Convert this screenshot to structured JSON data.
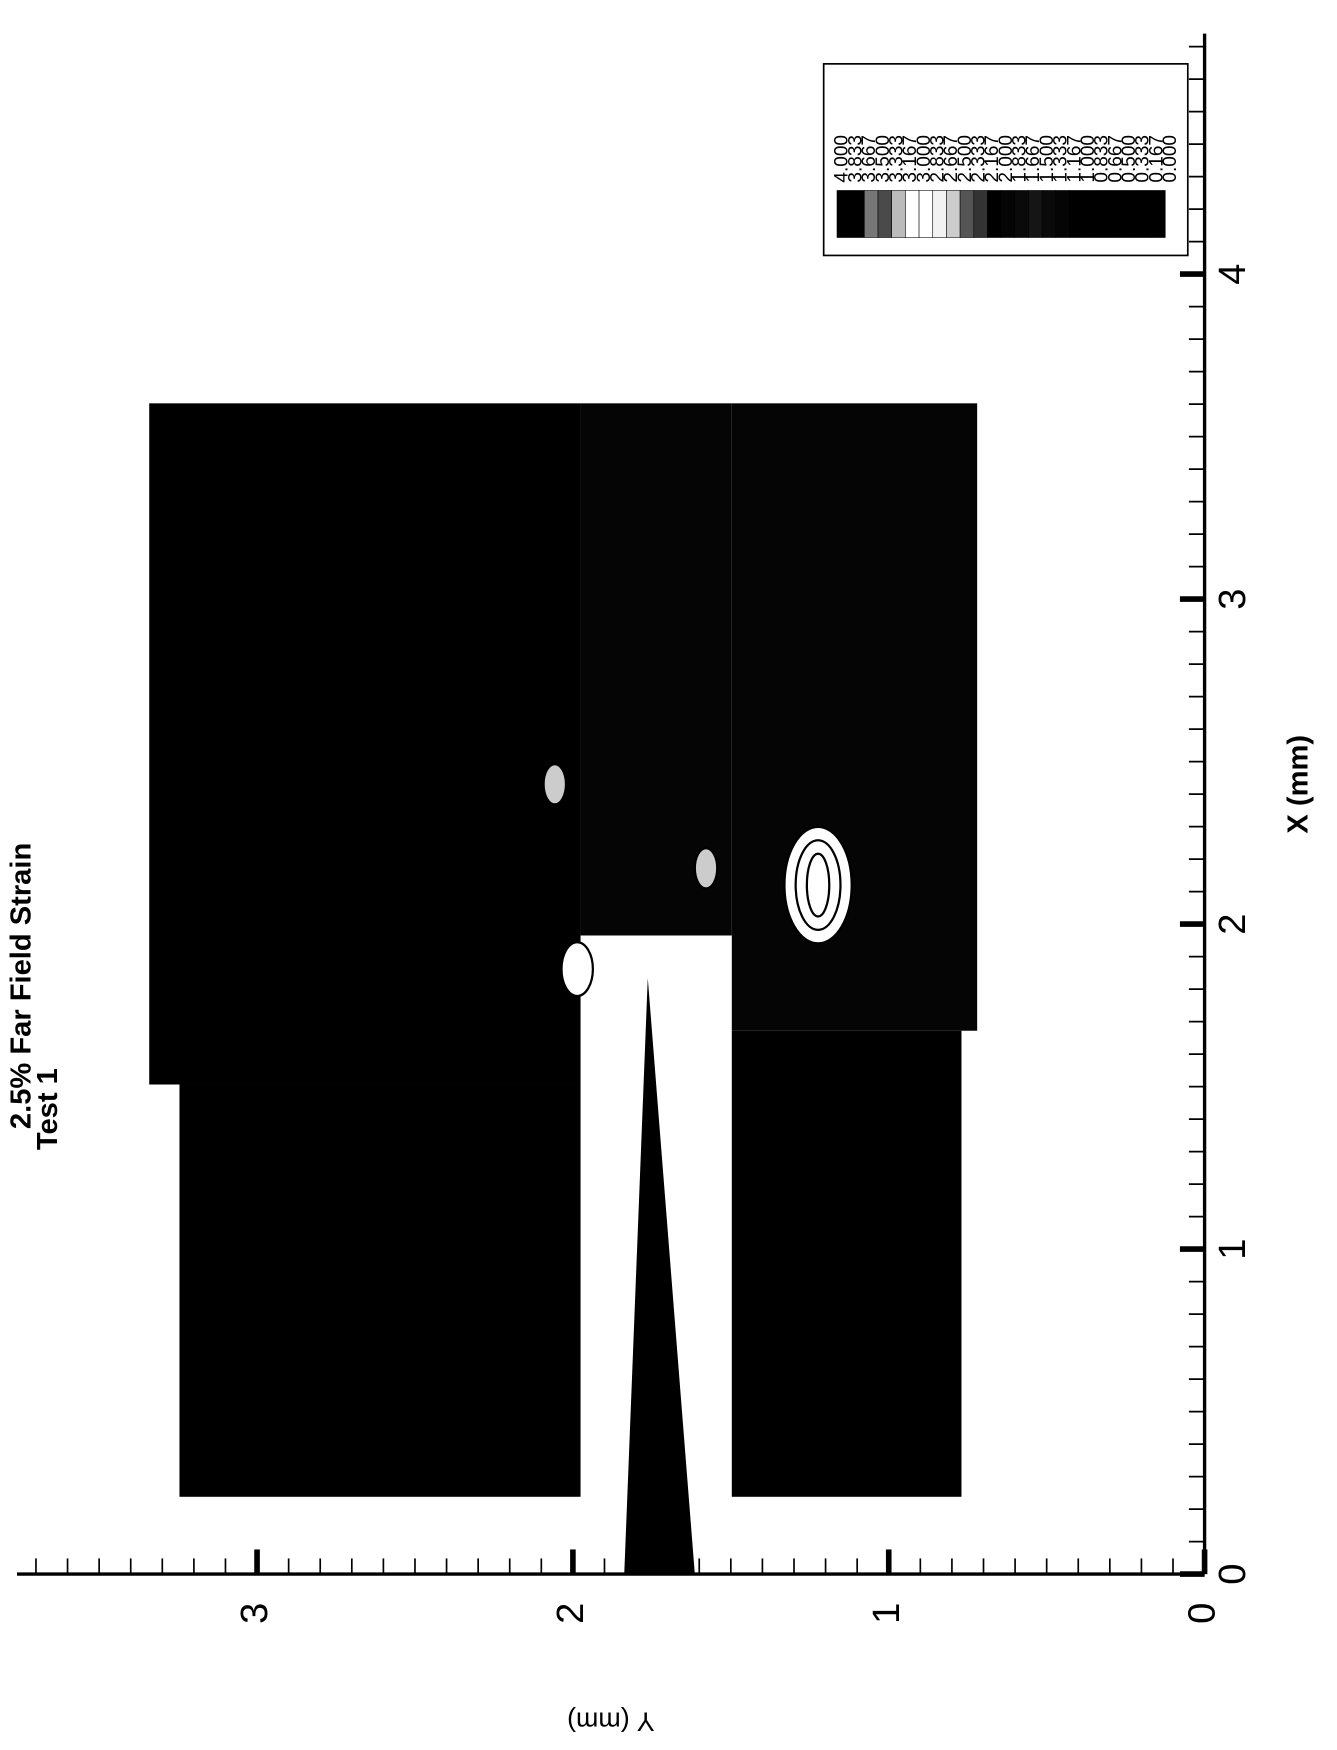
{
  "chart_data": {
    "type": "contour",
    "title": "2.5% Far Field Strain",
    "subtitle": "Test 1",
    "xlabel": "X (mm)",
    "ylabel": "Y (mm)",
    "xlim": [
      0,
      4.74
    ],
    "ylim": [
      0,
      3.76
    ],
    "xticks": [
      0,
      1,
      2,
      3,
      4
    ],
    "yticks": [
      0,
      1,
      2,
      3
    ],
    "xminorticks": [
      0.1,
      0.2,
      0.3,
      0.4,
      0.5,
      0.6,
      0.7,
      0.8,
      0.9,
      1.1,
      1.2,
      1.3,
      1.4,
      1.5,
      1.6,
      1.7,
      1.8,
      1.9,
      2.1,
      2.2,
      2.3,
      2.4,
      2.5,
      2.6,
      2.7,
      2.8,
      2.9,
      3.1,
      3.2,
      3.3,
      3.4,
      3.5,
      3.6,
      3.7,
      3.8,
      3.9,
      4.1,
      4.2,
      4.3,
      4.4,
      4.5,
      4.6,
      4.7
    ],
    "yminorticks": [
      0.1,
      0.2,
      0.3,
      0.4,
      0.5,
      0.6,
      0.7,
      0.8,
      0.9,
      1.1,
      1.2,
      1.3,
      1.4,
      1.5,
      1.6,
      1.7,
      1.8,
      1.9,
      2.1,
      2.2,
      2.3,
      2.4,
      2.5,
      2.6,
      2.7,
      2.8,
      2.9,
      3.1,
      3.2,
      3.3,
      3.4,
      3.5,
      3.6,
      3.7
    ],
    "colorbar": {
      "levels": [
        {
          "value": 4,
          "label": "4.000"
        },
        {
          "value": 3.833,
          "label": "3.833"
        },
        {
          "value": 3.667,
          "label": "3.667"
        },
        {
          "value": 3.5,
          "label": "3.500"
        },
        {
          "value": 3.333,
          "label": "3.333"
        },
        {
          "value": 3.167,
          "label": "3.167"
        },
        {
          "value": 3,
          "label": "3.000"
        },
        {
          "value": 2.833,
          "label": "2.833"
        },
        {
          "value": 2.667,
          "label": "2.667"
        },
        {
          "value": 2.5,
          "label": "2.500"
        },
        {
          "value": 2.333,
          "label": "2.333"
        },
        {
          "value": 2.167,
          "label": "2.167"
        },
        {
          "value": 2,
          "label": "2.000"
        },
        {
          "value": 1.833,
          "label": "1.833"
        },
        {
          "value": 1.667,
          "label": "1.667"
        },
        {
          "value": 1.5,
          "label": "1.500"
        },
        {
          "value": 1.333,
          "label": "1.333"
        },
        {
          "value": 1.167,
          "label": "1.167"
        },
        {
          "value": 1,
          "label": "1.000"
        },
        {
          "value": 0.833,
          "label": "0.833"
        },
        {
          "value": 0.667,
          "label": "0.667"
        },
        {
          "value": 0.5,
          "label": "0.500"
        },
        {
          "value": 0.333,
          "label": "0.333"
        },
        {
          "value": 0.167,
          "label": "0.167"
        },
        {
          "value": 0,
          "label": "0.000"
        }
      ],
      "colors": [
        "#000000",
        "#000000",
        "#777777",
        "#4a4a4a",
        "#bbbbbb",
        "#ffffff",
        "#ffffff",
        "#f2f2f2",
        "#cccccc",
        "#555555",
        "#333333",
        "#000000",
        "#050505",
        "#0a0a0a",
        "#151515",
        "#0a0a0a",
        "#050505",
        "#000000",
        "#000000",
        "#000000",
        "#000000",
        "#000000",
        "#000000",
        "#000000"
      ]
    }
  }
}
